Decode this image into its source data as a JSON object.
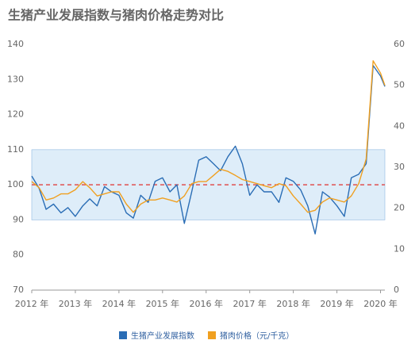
{
  "chart_data": {
    "type": "line",
    "title": "生猪产业发展指数与猪肉价格走势对比",
    "x": [
      2012,
      2012.17,
      2012.33,
      2012.5,
      2012.67,
      2012.83,
      2013,
      2013.17,
      2013.33,
      2013.5,
      2013.67,
      2013.83,
      2014,
      2014.17,
      2014.33,
      2014.5,
      2014.67,
      2014.83,
      2015,
      2015.17,
      2015.33,
      2015.5,
      2015.67,
      2015.83,
      2016,
      2016.17,
      2016.33,
      2016.5,
      2016.67,
      2016.83,
      2017,
      2017.17,
      2017.33,
      2017.5,
      2017.67,
      2017.83,
      2018,
      2018.17,
      2018.33,
      2018.5,
      2018.67,
      2018.83,
      2019,
      2019.17,
      2019.33,
      2019.5,
      2019.67,
      2019.83,
      2020,
      2020.1
    ],
    "series": [
      {
        "name": "生猪产业发展指数",
        "color": "#2a6db5",
        "axis": "y",
        "values": [
          102.5,
          99,
          93,
          94.5,
          92,
          93.5,
          91,
          94,
          96,
          94,
          99.5,
          98,
          97,
          92,
          90.5,
          97,
          95,
          101,
          102,
          98,
          100,
          89,
          98,
          107,
          108,
          106,
          104,
          108,
          111,
          106,
          97,
          100,
          98,
          98,
          95,
          102,
          101,
          98.5,
          94,
          86,
          98,
          96.5,
          94,
          91,
          102,
          103,
          106,
          134,
          131,
          128
        ]
      },
      {
        "name": "猪肉价格（元/千克）",
        "color": "#f0a020",
        "axis": "y2",
        "values": [
          26.5,
          25,
          22,
          22.5,
          23.5,
          23.5,
          24.5,
          26.5,
          25,
          23,
          23.5,
          24,
          24,
          21,
          19,
          21,
          22,
          22,
          22.5,
          22,
          21.5,
          23,
          26,
          26.5,
          26.5,
          28,
          29.5,
          29,
          28,
          27,
          26.5,
          26,
          25.5,
          25,
          26,
          25.5,
          23,
          21,
          19,
          19.5,
          21.5,
          22.5,
          22,
          21.5,
          23,
          26,
          32,
          56,
          53,
          50
        ]
      }
    ],
    "xlim": [
      2012,
      2020.1
    ],
    "xticks": [
      {
        "value": 2012,
        "label": "2012 年"
      },
      {
        "value": 2013,
        "label": "2013 年"
      },
      {
        "value": 2014,
        "label": "2014 年"
      },
      {
        "value": 2015,
        "label": "2015 年"
      },
      {
        "value": 2016,
        "label": "2016 年"
      },
      {
        "value": 2017,
        "label": "2017 年"
      },
      {
        "value": 2018,
        "label": "2018 年"
      },
      {
        "value": 2019,
        "label": "2019 年"
      },
      {
        "value": 2020,
        "label": "2020 年"
      }
    ],
    "ylim": [
      70,
      140
    ],
    "yticks": [
      70,
      80,
      90,
      100,
      110,
      120,
      130,
      140
    ],
    "y2lim": [
      0,
      60
    ],
    "y2ticks": [
      0,
      10,
      20,
      30,
      40,
      50,
      60
    ],
    "band": [
      90,
      110
    ],
    "band_color": "#deedf9",
    "ref_line": 100,
    "ref_color": "#e05050",
    "legend": "bottom"
  }
}
